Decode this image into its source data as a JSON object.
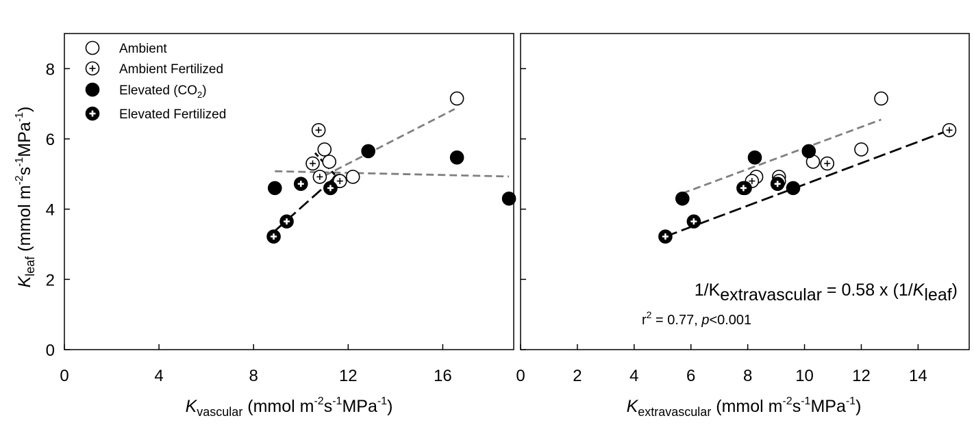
{
  "legend": {
    "items": [
      {
        "key": "amb",
        "label": "Ambient",
        "label_parts": []
      },
      {
        "key": "ambF",
        "label": "Ambient Fertilized",
        "label_parts": []
      },
      {
        "key": "elev",
        "label": "Elevated (CO2)",
        "label_parts": [
          "Elevated (CO",
          "2",
          ")"
        ]
      },
      {
        "key": "elevF",
        "label": "Elevated Fertilized",
        "label_parts": []
      }
    ]
  },
  "y_axis": {
    "label": "Kleaf (mmol m-2s-1MPa-1)",
    "label_parts": [
      "K",
      "leaf",
      " (mmol m",
      "-2",
      "s",
      "-1",
      "MPa",
      "-1",
      ")"
    ]
  },
  "annotation": {
    "equation": "1/Kextravascular = 0.58 x (1/Kleaf)",
    "equation_parts": [
      "1/K",
      "extravascular",
      " = 0.58 x (1/",
      "K",
      "leaf",
      ")"
    ],
    "stats": "r2 = 0.77, p<0.001",
    "stats_parts": [
      "r",
      "2",
      " = 0.77, ",
      "p",
      "<0.001"
    ]
  },
  "chart_data": [
    {
      "type": "scatter",
      "panel": "left",
      "xlabel": "Kvascular (mmol m-2s-1MPa-1)",
      "xlabel_parts": [
        "K",
        "vascular",
        " (mmol m",
        "-2",
        "s",
        "-1",
        "MPa",
        "-1",
        ")"
      ],
      "ylabel": "Kleaf (mmol m-2s-1MPa-1)",
      "xlim": [
        0,
        19
      ],
      "ylim": [
        0,
        9
      ],
      "xticks": [
        0,
        4,
        8,
        12,
        16
      ],
      "yticks": [
        0,
        2,
        4,
        6,
        8
      ],
      "grid": false,
      "legend_position": "top-left",
      "series": [
        {
          "name": "Ambient",
          "marker": "open-circle",
          "points": [
            [
              11.0,
              5.7
            ],
            [
              11.2,
              5.35
            ],
            [
              11.6,
              4.8
            ],
            [
              12.2,
              4.92
            ],
            [
              16.6,
              7.15
            ]
          ]
        },
        {
          "name": "Ambient Fertilized",
          "marker": "open-circle-plus",
          "points": [
            [
              10.5,
              5.3
            ],
            [
              10.75,
              6.25
            ],
            [
              10.8,
              4.92
            ],
            [
              11.65,
              4.8
            ]
          ]
        },
        {
          "name": "Elevated (CO2)",
          "marker": "filled-circle",
          "points": [
            [
              8.9,
              4.6
            ],
            [
              11.25,
              4.6
            ],
            [
              12.85,
              5.65
            ],
            [
              16.6,
              5.47
            ],
            [
              18.8,
              4.3
            ]
          ]
        },
        {
          "name": "Elevated Fertilized",
          "marker": "filled-circle-plus",
          "points": [
            [
              8.85,
              3.22
            ],
            [
              9.4,
              3.65
            ],
            [
              10.0,
              4.72
            ],
            [
              11.25,
              4.6
            ]
          ]
        }
      ],
      "fit_lines": [
        {
          "series": "Ambient",
          "color": "#808080",
          "dash": "medium",
          "from": [
            11.0,
            4.95
          ],
          "to": [
            16.5,
            6.85
          ]
        },
        {
          "series": "Elevated (CO2)",
          "color": "#808080",
          "dash": "medium",
          "from": [
            8.9,
            5.08
          ],
          "to": [
            18.8,
            4.93
          ]
        },
        {
          "series": "Ambient Fertilized",
          "color": "#000000",
          "dash": "short",
          "from": [
            10.6,
            5.6
          ],
          "to": [
            11.7,
            4.78
          ]
        },
        {
          "series": "Elevated Fertilized",
          "color": "#000000",
          "dash": "long",
          "from": [
            8.85,
            3.35
          ],
          "to": [
            11.35,
            4.85
          ]
        }
      ]
    },
    {
      "type": "scatter",
      "panel": "right",
      "xlabel": "Kextravascular (mmol m-2s-1MPa-1)",
      "xlabel_parts": [
        "K",
        "extravascular",
        " (mmol m",
        "-2",
        "s",
        "-1",
        "MPa",
        "-1",
        ")"
      ],
      "ylabel": "Kleaf (mmol m-2s-1MPa-1)",
      "xlim": [
        0,
        15.8
      ],
      "ylim": [
        0,
        9
      ],
      "xticks": [
        0,
        2,
        4,
        6,
        8,
        10,
        12,
        14
      ],
      "yticks": [
        0,
        2,
        4,
        6,
        8
      ],
      "grid": false,
      "series": [
        {
          "name": "Ambient",
          "marker": "open-circle",
          "points": [
            [
              8.3,
              4.92
            ],
            [
              9.1,
              4.92
            ],
            [
              10.3,
              5.35
            ],
            [
              12.0,
              5.7
            ],
            [
              12.7,
              7.15
            ]
          ]
        },
        {
          "name": "Ambient Fertilized",
          "marker": "open-circle-plus",
          "points": [
            [
              8.15,
              4.8
            ],
            [
              9.1,
              4.8
            ],
            [
              10.8,
              5.3
            ],
            [
              15.1,
              6.25
            ]
          ]
        },
        {
          "name": "Elevated (CO2)",
          "marker": "filled-circle",
          "points": [
            [
              5.7,
              4.3
            ],
            [
              8.25,
              5.47
            ],
            [
              9.6,
              4.6
            ],
            [
              10.15,
              5.65
            ],
            [
              7.9,
              4.6
            ]
          ]
        },
        {
          "name": "Elevated Fertilized",
          "marker": "filled-circle-plus",
          "points": [
            [
              5.1,
              3.22
            ],
            [
              6.1,
              3.65
            ],
            [
              7.85,
              4.6
            ],
            [
              9.05,
              4.72
            ]
          ]
        }
      ],
      "fit_lines": [
        {
          "series": "Ambient",
          "color": "#808080",
          "dash": "medium",
          "from": [
            5.7,
            4.45
          ],
          "to": [
            12.7,
            6.55
          ]
        },
        {
          "series": "All",
          "color": "#000000",
          "dash": "long",
          "from": [
            5.1,
            3.22
          ],
          "to": [
            15.1,
            6.25
          ]
        }
      ]
    }
  ]
}
